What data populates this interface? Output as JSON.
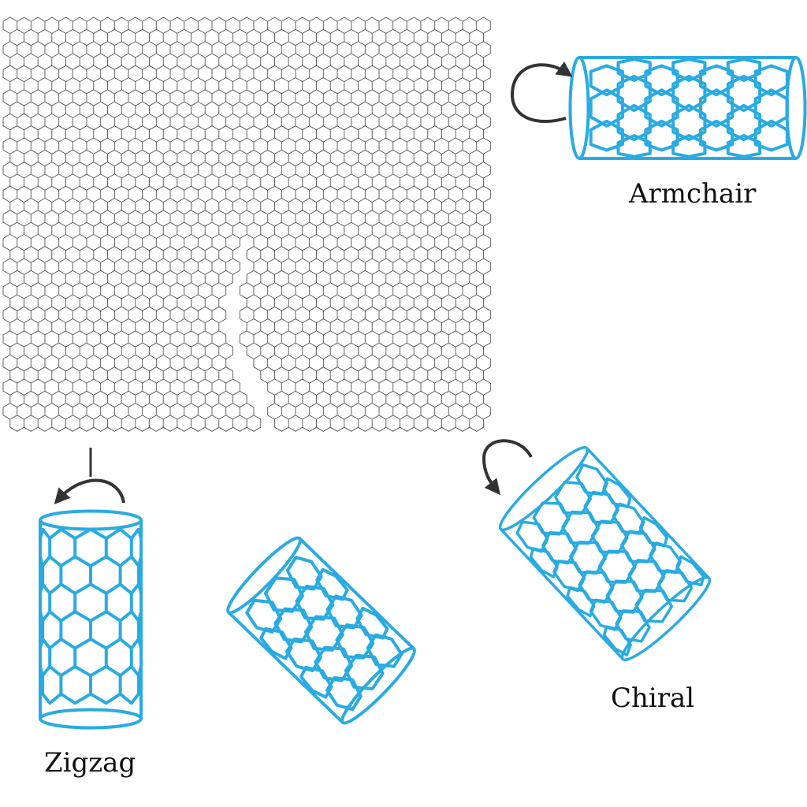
{
  "labels": {
    "armchair": "Armchair",
    "zigzag": "Zigzag",
    "chiral": "Chiral"
  },
  "colors": {
    "nanotube": "#29abe2",
    "sheet_lines": "#555555",
    "arrow": "#333333",
    "background": "#ffffff"
  },
  "icons": {
    "rotation": "curved-arrow-icon"
  }
}
